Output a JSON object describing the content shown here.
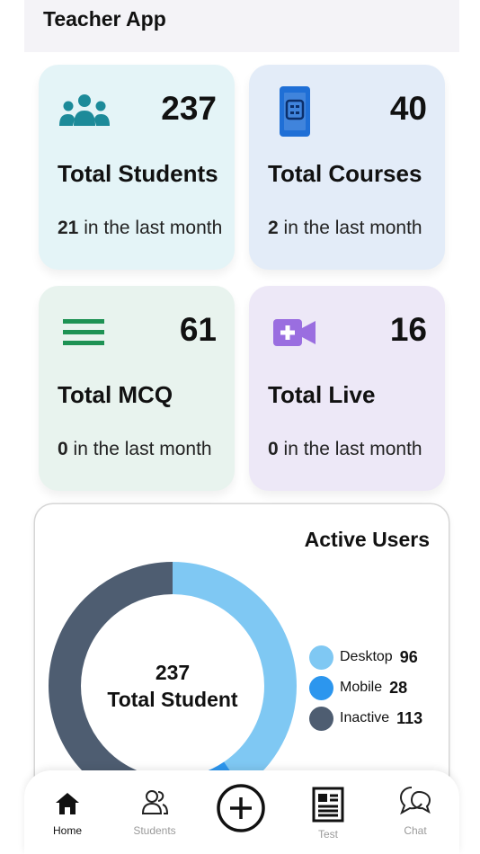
{
  "header": {
    "title": "Teacher App"
  },
  "stats": [
    {
      "value": "237",
      "label": "Total Students",
      "sub_count": "21",
      "sub_text": " in the last month",
      "icon": "people-icon",
      "color": "#1c8a99"
    },
    {
      "value": "40",
      "label": "Total Courses",
      "sub_count": "2",
      "sub_text": " in the last month",
      "icon": "phone-book-icon",
      "color": "#1f6fd6"
    },
    {
      "value": "61",
      "label": "Total MCQ",
      "sub_count": "0",
      "sub_text": " in the last month",
      "icon": "list-lines-icon",
      "color": "#1e9254"
    },
    {
      "value": "16",
      "label": "Total Live",
      "sub_count": "0",
      "sub_text": " in the last month",
      "icon": "video-add-icon",
      "color": "#9a6ee0"
    }
  ],
  "active_users": {
    "title": "Active Users",
    "center_value": "237",
    "center_label": "Total Student"
  },
  "chart_data": {
    "type": "pie",
    "title": "Active Users",
    "categories": [
      "Desktop",
      "Mobile",
      "Inactive"
    ],
    "values": [
      96,
      28,
      113
    ],
    "colors": [
      "#7fc8f3",
      "#2c96ee",
      "#4e5d71"
    ],
    "total": 237
  },
  "legend": [
    {
      "label": "Desktop",
      "value": "96",
      "color": "#7fc8f3"
    },
    {
      "label": "Mobile",
      "value": "28",
      "color": "#2c96ee"
    },
    {
      "label": "Inactive",
      "value": "113",
      "color": "#4e5d71"
    }
  ],
  "nav": [
    {
      "label": "Home",
      "icon": "home-icon",
      "active": true
    },
    {
      "label": "Students",
      "icon": "students-icon",
      "active": false
    },
    {
      "label": "",
      "icon": "add-circle-icon",
      "active": false
    },
    {
      "label": "Test",
      "icon": "test-document-icon",
      "active": false
    },
    {
      "label": "Chat",
      "icon": "chat-icon",
      "active": false
    }
  ]
}
